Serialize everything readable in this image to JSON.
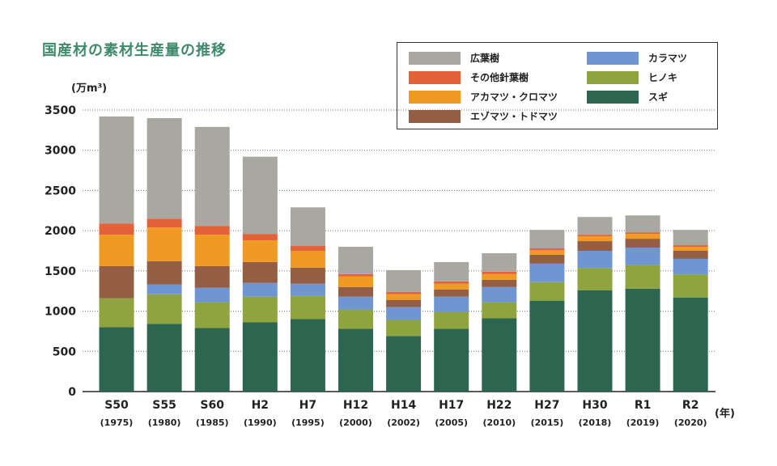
{
  "title": "国産材の素材生産量の推移",
  "unit_label": "(万m³)",
  "x_unit_label": "(年)",
  "colors": {
    "広葉樹": "#a8a8a0",
    "その他針葉樹": "#e4623a",
    "アカマツ・クロマツ": "#ef9a22",
    "エゾマツ・トドマツ": "#935e43",
    "カラマツ": "#6f96d3",
    "ヒノキ": "#8fa33e",
    "スギ": "#2c6650"
  },
  "legend": [
    {
      "label": "広葉樹",
      "key": "広葉樹"
    },
    {
      "label": "その他針葉樹",
      "key": "その他針葉樹"
    },
    {
      "label": "アカマツ・クロマツ",
      "key": "アカマツ・クロマツ"
    },
    {
      "label": "エゾマツ・トドマツ",
      "key": "エゾマツ・トドマツ"
    },
    {
      "label": "カラマツ",
      "key": "カラマツ"
    },
    {
      "label": "ヒノキ",
      "key": "ヒノキ"
    },
    {
      "label": "スギ",
      "key": "スギ"
    }
  ],
  "chart_data": {
    "type": "bar",
    "stacked": true,
    "title": "国産材の素材生産量の推移",
    "ylabel": "(万m³)",
    "xlabel": "(年)",
    "ylim": [
      0,
      3500
    ],
    "yticks": [
      0,
      500,
      1000,
      1500,
      2000,
      2500,
      3000,
      3500
    ],
    "grid": true,
    "legend_position": "top-right",
    "categories": [
      "S50",
      "S55",
      "S60",
      "H2",
      "H7",
      "H12",
      "H14",
      "H17",
      "H22",
      "H27",
      "H30",
      "R1",
      "R2"
    ],
    "category_years": [
      "(1975)",
      "(1980)",
      "(1985)",
      "(1990)",
      "(1995)",
      "(2000)",
      "(2002)",
      "(2005)",
      "(2010)",
      "(2015)",
      "(2018)",
      "(2019)",
      "(2020)"
    ],
    "series": [
      {
        "name": "スギ",
        "values": [
          800,
          840,
          790,
          860,
          900,
          780,
          690,
          780,
          910,
          1130,
          1260,
          1280,
          1170
        ]
      },
      {
        "name": "ヒノキ",
        "values": [
          360,
          370,
          320,
          320,
          290,
          240,
          200,
          210,
          200,
          230,
          270,
          290,
          280
        ]
      },
      {
        "name": "カラマツ",
        "values": [
          0,
          120,
          180,
          170,
          150,
          160,
          160,
          190,
          190,
          230,
          220,
          220,
          200
        ]
      },
      {
        "name": "エゾマツ・トドマツ",
        "values": [
          400,
          290,
          270,
          260,
          200,
          120,
          90,
          90,
          90,
          110,
          120,
          110,
          100
        ]
      },
      {
        "name": "アカマツ・クロマツ",
        "values": [
          390,
          420,
          390,
          270,
          210,
          130,
          70,
          70,
          70,
          60,
          60,
          60,
          50
        ]
      },
      {
        "name": "その他針葉樹",
        "values": [
          140,
          110,
          110,
          80,
          60,
          30,
          30,
          30,
          30,
          20,
          20,
          20,
          20
        ]
      },
      {
        "name": "広葉樹",
        "values": [
          1330,
          1250,
          1230,
          960,
          480,
          340,
          270,
          240,
          230,
          230,
          220,
          210,
          190
        ]
      }
    ]
  }
}
